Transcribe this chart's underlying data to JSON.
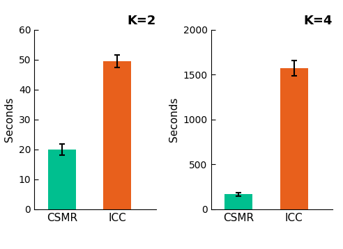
{
  "panels": [
    {
      "title": "K=2",
      "categories": [
        "CSMR",
        "ICC"
      ],
      "values": [
        20.0,
        49.5
      ],
      "errors": [
        1.8,
        2.0
      ],
      "ylabel": "Seconds",
      "ylim": [
        0,
        60
      ],
      "yticks": [
        0,
        10,
        20,
        30,
        40,
        50,
        60
      ]
    },
    {
      "title": "K=4",
      "categories": [
        "CSMR",
        "ICC"
      ],
      "values": [
        165.0,
        1575.0
      ],
      "errors": [
        22.0,
        85.0
      ],
      "ylabel": "Seconds",
      "ylim": [
        0,
        2000
      ],
      "yticks": [
        0,
        500,
        1000,
        1500,
        2000
      ]
    }
  ],
  "bar_colors": [
    "#00BF8F",
    "#E8601C"
  ],
  "bar_width": 0.5,
  "title_fontsize": 13,
  "label_fontsize": 11,
  "tick_fontsize": 10,
  "ylabel_fontsize": 11,
  "background_color": "#ffffff",
  "error_capsize": 3,
  "error_color": "black",
  "error_linewidth": 1.5
}
